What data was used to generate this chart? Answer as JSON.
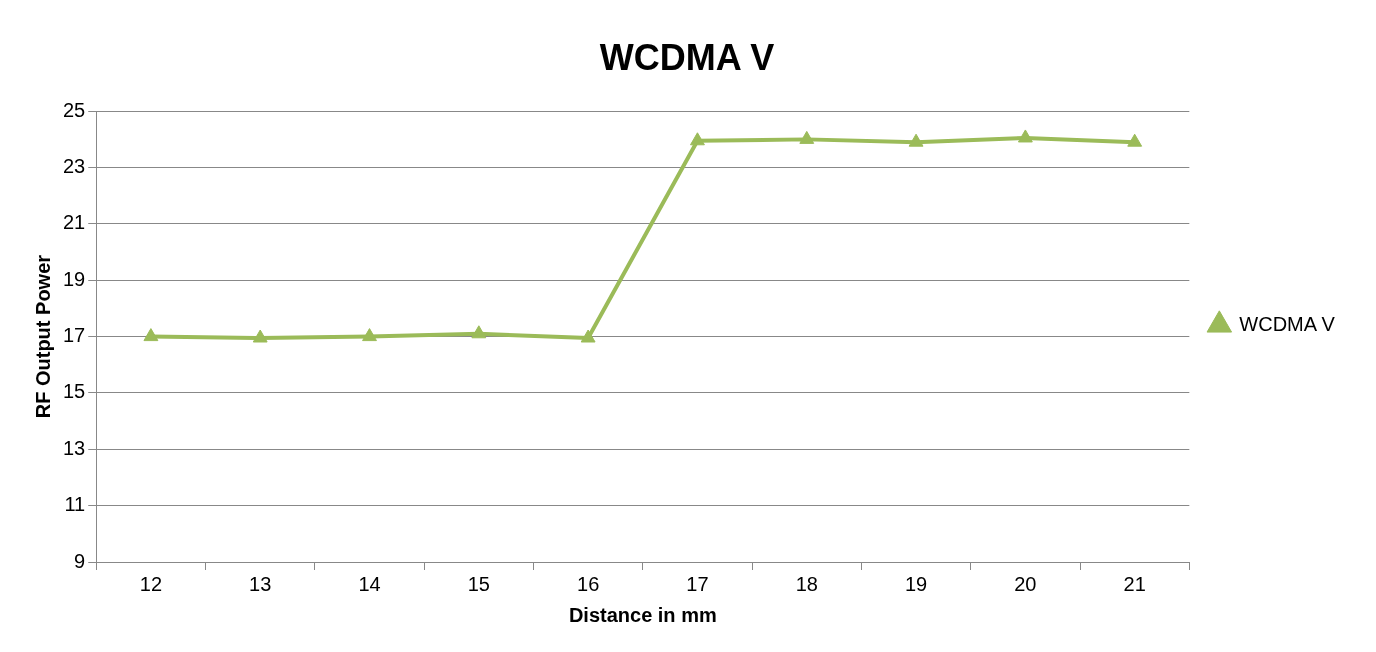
{
  "chart_data": {
    "type": "line",
    "title": "WCDMA V",
    "xlabel": "Distance in mm",
    "ylabel": "RF Output Power",
    "categories": [
      "12",
      "13",
      "14",
      "15",
      "16",
      "17",
      "18",
      "19",
      "20",
      "21"
    ],
    "series": [
      {
        "name": "WCDMA V",
        "color": "#9bbb59",
        "values": [
          17.0,
          16.95,
          17.0,
          17.1,
          16.95,
          23.95,
          24.0,
          23.9,
          24.05,
          23.9
        ]
      }
    ],
    "ylim": [
      9,
      25
    ],
    "yticks": [
      9,
      11,
      13,
      15,
      17,
      19,
      21,
      23,
      25
    ],
    "grid": "y",
    "legend": "right",
    "marker": "triangle",
    "line_style": "solid"
  }
}
